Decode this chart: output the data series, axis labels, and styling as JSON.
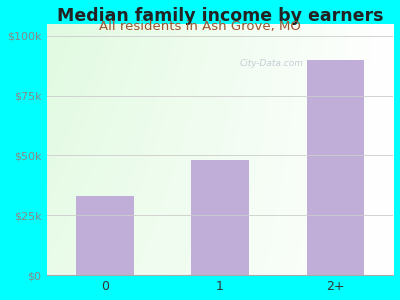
{
  "title": "Median family income by earners",
  "subtitle": "All residents in Ash Grove, MO",
  "categories": [
    "0",
    "1",
    "2+"
  ],
  "values": [
    33000,
    48000,
    90000
  ],
  "bar_color": "#c0aed8",
  "bg_color": "#00FFFF",
  "yticks": [
    0,
    25000,
    50000,
    75000,
    100000
  ],
  "ytick_labels": [
    "$0",
    "$25k",
    "$50k",
    "$75k",
    "$100k"
  ],
  "ylim": [
    0,
    105000
  ],
  "title_color": "#222222",
  "subtitle_color": "#a0522d",
  "title_fontsize": 12.5,
  "subtitle_fontsize": 9.5,
  "watermark": "City-Data.com",
  "tick_color": "#888888",
  "grid_color": "#cccccc"
}
